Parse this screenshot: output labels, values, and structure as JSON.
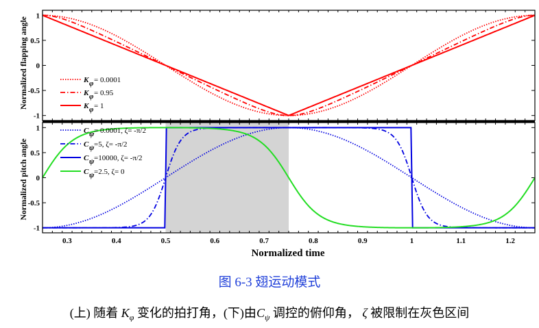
{
  "chart_data": [
    {
      "type": "line",
      "panel": "top",
      "ylabel": "Normalized flapping angle",
      "ylim": [
        -1.1,
        1.1
      ],
      "yticks": [
        "1",
        "0.5",
        "0",
        "-0.5",
        "-1"
      ],
      "xlim": [
        0.25,
        1.25
      ],
      "color": "#ff0000",
      "series": [
        {
          "name": "K_φ = 0.0001",
          "legend_label": "= 0.0001",
          "var": "K",
          "sub": "φ",
          "style": "dotted",
          "k": 0.0001,
          "x": [
            0.25,
            0.375,
            0.5,
            0.625,
            0.75,
            0.875,
            1.0,
            1.125,
            1.25
          ],
          "values": [
            1,
            0.71,
            0,
            -0.71,
            -1,
            -0.71,
            0,
            0.71,
            1
          ]
        },
        {
          "name": "K_φ = 0.95",
          "legend_label": "= 0.95",
          "var": "K",
          "sub": "φ",
          "style": "dashdot",
          "k": 0.95,
          "x": [
            0.25,
            0.375,
            0.5,
            0.625,
            0.75,
            0.875,
            1.0,
            1.125,
            1.25
          ],
          "values": [
            1,
            0.58,
            0,
            -0.58,
            -1,
            -0.58,
            0,
            0.58,
            1
          ]
        },
        {
          "name": "K_φ = 1",
          "legend_label": "= 1",
          "var": "K",
          "sub": "φ",
          "style": "solid",
          "k": 1,
          "x": [
            0.25,
            0.375,
            0.5,
            0.625,
            0.75,
            0.875,
            1.0,
            1.125,
            1.25
          ],
          "values": [
            1,
            0.5,
            0,
            -0.5,
            -1,
            -0.5,
            0,
            0.5,
            1
          ]
        }
      ]
    },
    {
      "type": "line",
      "panel": "bottom",
      "ylabel": "Normalized pitch angle",
      "xlabel": "Normalized time",
      "ylim": [
        -1.1,
        1.1
      ],
      "yticks": [
        "1",
        "0.5",
        "0",
        "-0.5",
        "-1"
      ],
      "xlim": [
        0.25,
        1.25
      ],
      "xticks": [
        "0.3",
        "0.4",
        "0.5",
        "0.6",
        "0.7",
        "0.8",
        "0.9",
        "1",
        "1.1",
        "1.2"
      ],
      "shaded_region": [
        0.5,
        0.75
      ],
      "series": [
        {
          "name": "C_ψ = 0.0001, ζ = -π/2",
          "legend_label": "= 0.0001, ζ= -π/2",
          "var": "C",
          "sub": "ψ",
          "color": "#0000e0",
          "style": "dotted",
          "c": 0.0001,
          "zeta": -1.5708,
          "x": [
            0.25,
            0.375,
            0.5,
            0.625,
            0.75,
            0.875,
            1.0,
            1.125,
            1.25
          ],
          "values": [
            0,
            -0.71,
            -1,
            -0.71,
            0,
            0.71,
            1,
            0.71,
            0
          ]
        },
        {
          "name": "C_ψ = 5, ζ = -π/2",
          "legend_label": "=5, ζ= -π/2",
          "var": "C",
          "sub": "ψ",
          "color": "#0000e0",
          "style": "dashdot",
          "c": 5,
          "zeta": -1.5708,
          "x": [
            0.25,
            0.3,
            0.375,
            0.5,
            0.625,
            0.7,
            0.75,
            0.8,
            0.875,
            1.0,
            1.125,
            1.2,
            1.25
          ],
          "values": [
            0,
            -0.78,
            -0.99,
            -1,
            -0.99,
            -0.78,
            0,
            0.78,
            0.99,
            1,
            0.99,
            0.78,
            0
          ]
        },
        {
          "name": "C_ψ = 10000, ζ = -π/2",
          "legend_label": "=10000, ζ= -π/2",
          "var": "C",
          "sub": "ψ",
          "color": "#0000e0",
          "style": "solid",
          "c": 10000,
          "zeta": -1.5708,
          "x": [
            0.25,
            0.375,
            0.5,
            0.625,
            0.75,
            0.875,
            1.0,
            1.125,
            1.25
          ],
          "values": [
            -1,
            -1,
            -1,
            -1,
            1,
            1,
            1,
            1,
            1
          ]
        },
        {
          "name": "C_ψ = 2.5, ζ = 0",
          "legend_label": "=2.5, ζ= 0",
          "var": "C",
          "sub": "ψ",
          "color": "#22dd22",
          "style": "solid",
          "c": 2.5,
          "zeta": 0,
          "x": [
            0.25,
            0.375,
            0.45,
            0.5,
            0.55,
            0.625,
            0.75,
            0.875,
            0.95,
            1.0,
            1.05,
            1.125,
            1.25
          ],
          "values": [
            -1,
            -0.96,
            -0.65,
            0,
            0.65,
            0.96,
            1,
            0.96,
            0.65,
            0,
            -0.65,
            -0.96,
            -1
          ]
        }
      ]
    }
  ],
  "caption": {
    "figure_label": "图",
    "figure_number": "6-3",
    "figure_title": "翅运动模式",
    "line_a": "(上) 随着",
    "k_var": "K",
    "k_sub": "φ",
    "line_b": " 变化的拍打角，(下)由",
    "c_var": "C",
    "c_sub": "ψ",
    "line_c": " 调控的俯仰角，",
    "zeta": "ζ",
    "line_d": " 被限制在灰色区间"
  }
}
